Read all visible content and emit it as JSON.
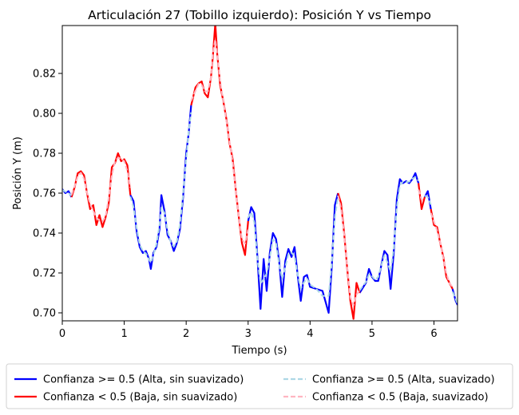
{
  "chart_data": {
    "type": "line",
    "title": "Articulación 27 (Tobillo izquierdo): Posición Y vs Tiempo",
    "xlabel": "Tiempo (s)",
    "ylabel": "Posición Y (m)",
    "xlim": [
      0,
      6.38
    ],
    "ylim": [
      0.696,
      0.844
    ],
    "xticks": [
      0,
      1,
      2,
      3,
      4,
      5,
      6
    ],
    "yticks": [
      0.7,
      0.72,
      0.74,
      0.76,
      0.78,
      0.8,
      0.82
    ],
    "ytick_labels": [
      "0.70",
      "0.72",
      "0.74",
      "0.76",
      "0.78",
      "0.80",
      "0.82"
    ],
    "grid": false,
    "legend_position": "below plot, two columns",
    "colors": {
      "high_raw": "#0000ff",
      "low_raw": "#ff0000",
      "high_smooth": "#add8e6",
      "low_smooth": "#ffb6c1"
    },
    "legend": [
      {
        "name": "Confianza >= 0.5 (Alta, sin suavizado)",
        "color": "#0000ff",
        "style": "solid"
      },
      {
        "name": "Confianza < 0.5 (Baja, sin suavizado)",
        "color": "#ff0000",
        "style": "solid"
      },
      {
        "name": "Confianza >= 0.5 (Alta, suavizado)",
        "color": "#add8e6",
        "style": "dashed"
      },
      {
        "name": "Confianza < 0.5 (Baja, suavizado)",
        "color": "#ffb6c1",
        "style": "dashed"
      }
    ],
    "series": [
      {
        "name": "Confianza >= 0.5 (Alta, sin suavizado)",
        "segments": [
          [
            [
              0.0,
              0.762
            ],
            [
              0.05,
              0.76
            ],
            [
              0.1,
              0.761
            ],
            [
              0.15,
              0.758
            ]
          ],
          [
            [
              1.1,
              0.759
            ],
            [
              1.15,
              0.756
            ],
            [
              1.2,
              0.741
            ],
            [
              1.25,
              0.733
            ],
            [
              1.3,
              0.73
            ],
            [
              1.35,
              0.731
            ],
            [
              1.4,
              0.727
            ],
            [
              1.43,
              0.722
            ],
            [
              1.47,
              0.73
            ],
            [
              1.52,
              0.733
            ],
            [
              1.57,
              0.742
            ],
            [
              1.6,
              0.759
            ],
            [
              1.65,
              0.751
            ],
            [
              1.7,
              0.739
            ],
            [
              1.75,
              0.736
            ],
            [
              1.8,
              0.731
            ],
            [
              1.85,
              0.735
            ],
            [
              1.9,
              0.742
            ],
            [
              1.95,
              0.758
            ],
            [
              2.0,
              0.78
            ],
            [
              2.04,
              0.79
            ],
            [
              2.08,
              0.804
            ]
          ],
          [
            [
              3.0,
              0.746
            ],
            [
              3.05,
              0.753
            ],
            [
              3.1,
              0.75
            ],
            [
              3.15,
              0.728
            ],
            [
              3.2,
              0.702
            ],
            [
              3.25,
              0.727
            ],
            [
              3.3,
              0.711
            ],
            [
              3.35,
              0.73
            ],
            [
              3.4,
              0.74
            ],
            [
              3.45,
              0.737
            ],
            [
              3.5,
              0.726
            ],
            [
              3.55,
              0.708
            ],
            [
              3.6,
              0.726
            ],
            [
              3.65,
              0.732
            ],
            [
              3.7,
              0.728
            ],
            [
              3.75,
              0.733
            ],
            [
              3.8,
              0.719
            ],
            [
              3.85,
              0.706
            ],
            [
              3.9,
              0.718
            ],
            [
              3.95,
              0.719
            ],
            [
              4.0,
              0.713
            ],
            [
              4.1,
              0.712
            ],
            [
              4.2,
              0.711
            ],
            [
              4.3,
              0.7
            ],
            [
              4.35,
              0.723
            ],
            [
              4.4,
              0.754
            ],
            [
              4.45,
              0.76
            ]
          ],
          [
            [
              4.8,
              0.71
            ],
            [
              4.9,
              0.715
            ],
            [
              4.95,
              0.722
            ],
            [
              5.0,
              0.718
            ],
            [
              5.05,
              0.716
            ],
            [
              5.1,
              0.716
            ],
            [
              5.15,
              0.724
            ],
            [
              5.2,
              0.731
            ],
            [
              5.25,
              0.729
            ],
            [
              5.3,
              0.712
            ],
            [
              5.35,
              0.73
            ],
            [
              5.4,
              0.757
            ],
            [
              5.45,
              0.767
            ],
            [
              5.5,
              0.765
            ],
            [
              5.55,
              0.766
            ],
            [
              5.6,
              0.765
            ],
            [
              5.65,
              0.767
            ],
            [
              5.7,
              0.77
            ],
            [
              5.75,
              0.765
            ]
          ],
          [
            [
              5.85,
              0.758
            ],
            [
              5.9,
              0.761
            ],
            [
              5.95,
              0.752
            ]
          ],
          [
            [
              6.3,
              0.712
            ],
            [
              6.35,
              0.706
            ],
            [
              6.38,
              0.704
            ]
          ]
        ]
      },
      {
        "name": "Confianza < 0.5 (Baja, sin suavizado)",
        "segments": [
          [
            [
              0.15,
              0.758
            ],
            [
              0.2,
              0.763
            ],
            [
              0.25,
              0.77
            ],
            [
              0.3,
              0.771
            ],
            [
              0.35,
              0.769
            ],
            [
              0.4,
              0.76
            ],
            [
              0.45,
              0.752
            ],
            [
              0.5,
              0.754
            ],
            [
              0.55,
              0.744
            ],
            [
              0.6,
              0.749
            ],
            [
              0.65,
              0.743
            ],
            [
              0.7,
              0.748
            ],
            [
              0.75,
              0.755
            ],
            [
              0.8,
              0.773
            ],
            [
              0.85,
              0.775
            ],
            [
              0.9,
              0.78
            ],
            [
              0.95,
              0.776
            ],
            [
              1.0,
              0.777
            ],
            [
              1.05,
              0.774
            ],
            [
              1.1,
              0.759
            ]
          ],
          [
            [
              2.08,
              0.804
            ],
            [
              2.15,
              0.813
            ],
            [
              2.2,
              0.815
            ],
            [
              2.25,
              0.816
            ],
            [
              2.3,
              0.81
            ],
            [
              2.35,
              0.808
            ],
            [
              2.4,
              0.818
            ],
            [
              2.43,
              0.828
            ],
            [
              2.47,
              0.845
            ],
            [
              2.5,
              0.83
            ],
            [
              2.55,
              0.814
            ],
            [
              2.6,
              0.806
            ],
            [
              2.65,
              0.797
            ],
            [
              2.7,
              0.785
            ],
            [
              2.75,
              0.777
            ],
            [
              2.8,
              0.762
            ],
            [
              2.85,
              0.748
            ],
            [
              2.9,
              0.735
            ],
            [
              2.95,
              0.729
            ],
            [
              3.0,
              0.746
            ]
          ],
          [
            [
              4.45,
              0.76
            ],
            [
              4.5,
              0.755
            ],
            [
              4.55,
              0.74
            ],
            [
              4.6,
              0.722
            ],
            [
              4.65,
              0.706
            ],
            [
              4.7,
              0.697
            ],
            [
              4.75,
              0.715
            ],
            [
              4.8,
              0.71
            ]
          ],
          [
            [
              5.75,
              0.765
            ],
            [
              5.8,
              0.752
            ],
            [
              5.85,
              0.758
            ]
          ],
          [
            [
              5.95,
              0.752
            ],
            [
              6.0,
              0.744
            ],
            [
              6.05,
              0.743
            ],
            [
              6.1,
              0.735
            ],
            [
              6.15,
              0.728
            ],
            [
              6.2,
              0.718
            ],
            [
              6.25,
              0.715
            ],
            [
              6.3,
              0.712
            ]
          ]
        ]
      }
    ]
  }
}
